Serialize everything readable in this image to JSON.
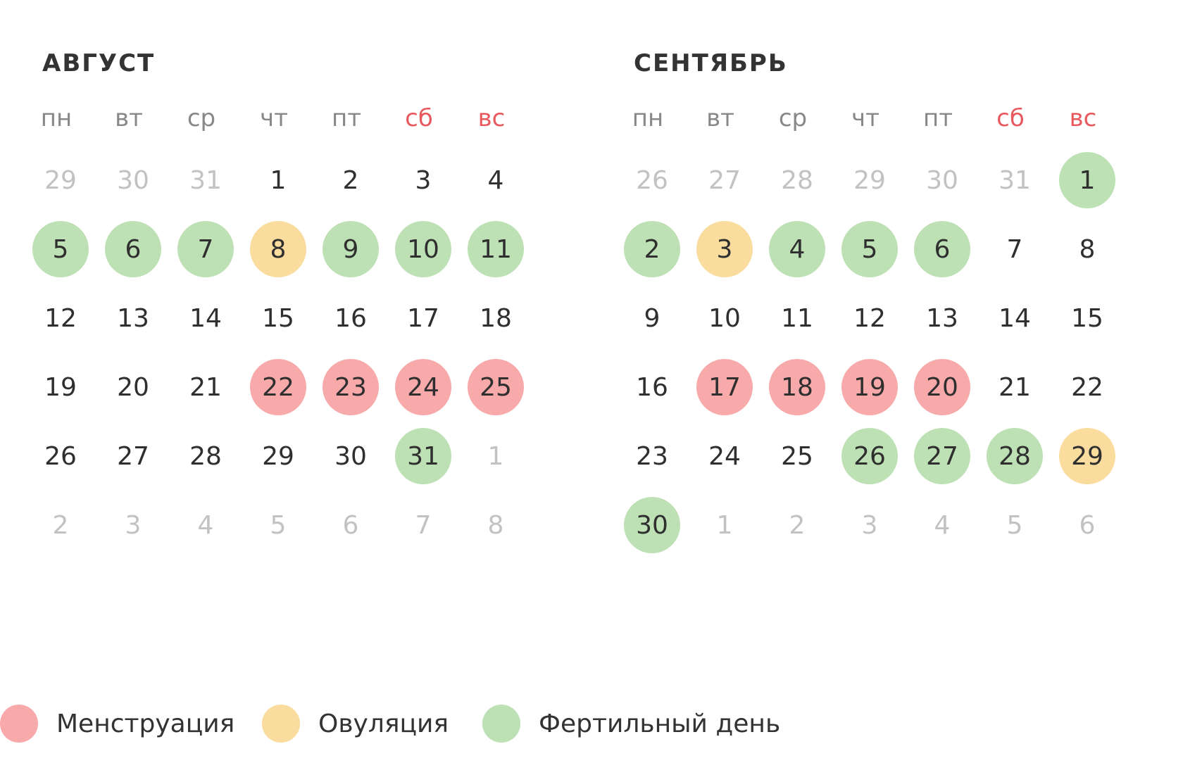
{
  "weekdays": [
    {
      "label": "пн",
      "weekend": false
    },
    {
      "label": "вт",
      "weekend": false
    },
    {
      "label": "ср",
      "weekend": false
    },
    {
      "label": "чт",
      "weekend": false
    },
    {
      "label": "пт",
      "weekend": false
    },
    {
      "label": "сб",
      "weekend": true
    },
    {
      "label": "вс",
      "weekend": true
    }
  ],
  "months": [
    {
      "id": "aug",
      "title": "АВГУСТ",
      "weeks": [
        [
          {
            "d": "29",
            "t": "other"
          },
          {
            "d": "30",
            "t": "other"
          },
          {
            "d": "31",
            "t": "other"
          },
          {
            "d": "1",
            "t": ""
          },
          {
            "d": "2",
            "t": ""
          },
          {
            "d": "3",
            "t": ""
          },
          {
            "d": "4",
            "t": ""
          }
        ],
        [
          {
            "d": "5",
            "t": "fertile"
          },
          {
            "d": "6",
            "t": "fertile"
          },
          {
            "d": "7",
            "t": "fertile"
          },
          {
            "d": "8",
            "t": "ovulation"
          },
          {
            "d": "9",
            "t": "fertile"
          },
          {
            "d": "10",
            "t": "fertile"
          },
          {
            "d": "11",
            "t": "fertile"
          }
        ],
        [
          {
            "d": "12",
            "t": ""
          },
          {
            "d": "13",
            "t": ""
          },
          {
            "d": "14",
            "t": ""
          },
          {
            "d": "15",
            "t": ""
          },
          {
            "d": "16",
            "t": ""
          },
          {
            "d": "17",
            "t": ""
          },
          {
            "d": "18",
            "t": ""
          }
        ],
        [
          {
            "d": "19",
            "t": ""
          },
          {
            "d": "20",
            "t": ""
          },
          {
            "d": "21",
            "t": ""
          },
          {
            "d": "22",
            "t": "menstruation"
          },
          {
            "d": "23",
            "t": "menstruation"
          },
          {
            "d": "24",
            "t": "menstruation"
          },
          {
            "d": "25",
            "t": "menstruation"
          }
        ],
        [
          {
            "d": "26",
            "t": ""
          },
          {
            "d": "27",
            "t": ""
          },
          {
            "d": "28",
            "t": ""
          },
          {
            "d": "29",
            "t": ""
          },
          {
            "d": "30",
            "t": ""
          },
          {
            "d": "31",
            "t": "fertile"
          },
          {
            "d": "1",
            "t": "other"
          }
        ],
        [
          {
            "d": "2",
            "t": "other"
          },
          {
            "d": "3",
            "t": "other"
          },
          {
            "d": "4",
            "t": "other"
          },
          {
            "d": "5",
            "t": "other"
          },
          {
            "d": "6",
            "t": "other"
          },
          {
            "d": "7",
            "t": "other"
          },
          {
            "d": "8",
            "t": "other"
          }
        ]
      ]
    },
    {
      "id": "sep",
      "title": "СЕНТЯБРЬ",
      "weeks": [
        [
          {
            "d": "26",
            "t": "other"
          },
          {
            "d": "27",
            "t": "other"
          },
          {
            "d": "28",
            "t": "other"
          },
          {
            "d": "29",
            "t": "other"
          },
          {
            "d": "30",
            "t": "other"
          },
          {
            "d": "31",
            "t": "other"
          },
          {
            "d": "1",
            "t": "fertile"
          }
        ],
        [
          {
            "d": "2",
            "t": "fertile"
          },
          {
            "d": "3",
            "t": "ovulation"
          },
          {
            "d": "4",
            "t": "fertile"
          },
          {
            "d": "5",
            "t": "fertile"
          },
          {
            "d": "6",
            "t": "fertile"
          },
          {
            "d": "7",
            "t": ""
          },
          {
            "d": "8",
            "t": ""
          }
        ],
        [
          {
            "d": "9",
            "t": ""
          },
          {
            "d": "10",
            "t": ""
          },
          {
            "d": "11",
            "t": ""
          },
          {
            "d": "12",
            "t": ""
          },
          {
            "d": "13",
            "t": ""
          },
          {
            "d": "14",
            "t": ""
          },
          {
            "d": "15",
            "t": ""
          }
        ],
        [
          {
            "d": "16",
            "t": ""
          },
          {
            "d": "17",
            "t": "menstruation"
          },
          {
            "d": "18",
            "t": "menstruation"
          },
          {
            "d": "19",
            "t": "menstruation"
          },
          {
            "d": "20",
            "t": "menstruation"
          },
          {
            "d": "21",
            "t": ""
          },
          {
            "d": "22",
            "t": ""
          }
        ],
        [
          {
            "d": "23",
            "t": ""
          },
          {
            "d": "24",
            "t": ""
          },
          {
            "d": "25",
            "t": ""
          },
          {
            "d": "26",
            "t": "fertile"
          },
          {
            "d": "27",
            "t": "fertile"
          },
          {
            "d": "28",
            "t": "fertile"
          },
          {
            "d": "29",
            "t": "ovulation"
          }
        ],
        [
          {
            "d": "30",
            "t": "fertile"
          },
          {
            "d": "1",
            "t": "other"
          },
          {
            "d": "2",
            "t": "other"
          },
          {
            "d": "3",
            "t": "other"
          },
          {
            "d": "4",
            "t": "other"
          },
          {
            "d": "5",
            "t": "other"
          },
          {
            "d": "6",
            "t": "other"
          }
        ]
      ]
    }
  ],
  "legend": [
    {
      "key": "menstruation",
      "label": "Менструация",
      "color": "#f8a9aa"
    },
    {
      "key": "ovulation",
      "label": "Овуляция",
      "color": "#f9dc9e"
    },
    {
      "key": "fertile",
      "label": "Фертильный день",
      "color": "#bde1b4"
    }
  ],
  "colors": {
    "weekend": "#e8595d",
    "weekday": "#888888",
    "other_month_day": "#c2c2c2",
    "day": "#2f2f2f"
  }
}
